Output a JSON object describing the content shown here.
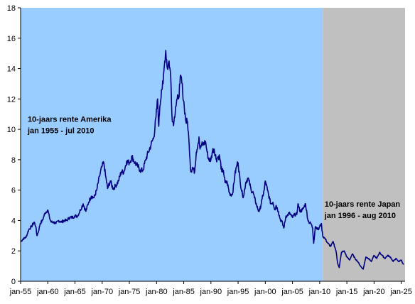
{
  "chart_data": {
    "type": "line",
    "title": "",
    "xlabel": "",
    "ylabel": "",
    "xlim": [
      1955,
      2025.7
    ],
    "ylim": [
      0,
      18
    ],
    "grid": false,
    "legend": "none",
    "y_ticks": [
      0,
      2,
      4,
      6,
      8,
      10,
      12,
      14,
      16,
      18
    ],
    "x_ticks": [
      {
        "x": 1955,
        "label": "jan-55"
      },
      {
        "x": 1960,
        "label": "jan-60"
      },
      {
        "x": 1965,
        "label": "jan-65"
      },
      {
        "x": 1970,
        "label": "jan-70"
      },
      {
        "x": 1975,
        "label": "jan-75"
      },
      {
        "x": 1980,
        "label": "jan-80"
      },
      {
        "x": 1985,
        "label": "jan-85"
      },
      {
        "x": 1990,
        "label": "jan-90"
      },
      {
        "x": 1995,
        "label": "jan-95"
      },
      {
        "x": 2000,
        "label": "jan-00"
      },
      {
        "x": 2005,
        "label": "jan-05"
      },
      {
        "x": 2010,
        "label": "jan-10"
      },
      {
        "x": 2015,
        "label": "jan-15"
      },
      {
        "x": 2020,
        "label": "jan-20"
      },
      {
        "x": 2025,
        "label": "jan-25"
      }
    ],
    "regions": [
      {
        "from": 1955,
        "to": 2010.58,
        "color": "#99ccff"
      },
      {
        "from": 2010.58,
        "to": 2025.7,
        "color": "#c0c0c0"
      }
    ],
    "series": [
      {
        "color": "#000080",
        "x": [
          1955.0,
          1955.5,
          1956.0,
          1956.5,
          1957.0,
          1957.5,
          1957.8,
          1958.0,
          1958.3,
          1958.6,
          1959.0,
          1959.5,
          1960.0,
          1960.3,
          1960.6,
          1961.0,
          1961.5,
          1962.0,
          1962.5,
          1963.0,
          1963.5,
          1964.0,
          1964.5,
          1965.0,
          1965.5,
          1966.0,
          1966.5,
          1967.0,
          1967.5,
          1968.0,
          1968.5,
          1969.0,
          1969.5,
          1970.0,
          1970.3,
          1970.6,
          1971.0,
          1971.5,
          1972.0,
          1972.5,
          1973.0,
          1973.5,
          1974.0,
          1974.5,
          1975.0,
          1975.5,
          1976.0,
          1976.5,
          1977.0,
          1977.5,
          1978.0,
          1978.5,
          1979.0,
          1979.5,
          1979.9,
          1980.2,
          1980.4,
          1980.6,
          1980.9,
          1981.2,
          1981.5,
          1981.7,
          1982.0,
          1982.3,
          1982.6,
          1982.9,
          1983.2,
          1983.5,
          1983.8,
          1984.0,
          1984.3,
          1984.5,
          1984.8,
          1985.1,
          1985.4,
          1985.7,
          1986.0,
          1986.3,
          1986.6,
          1987.0,
          1987.3,
          1987.6,
          1987.8,
          1988.0,
          1988.3,
          1988.6,
          1989.0,
          1989.3,
          1989.6,
          1990.0,
          1990.3,
          1990.6,
          1991.0,
          1991.3,
          1991.6,
          1992.0,
          1992.3,
          1992.6,
          1993.0,
          1993.4,
          1993.8,
          1994.0,
          1994.4,
          1994.8,
          1995.0,
          1995.4,
          1995.8,
          1996.0,
          1996.4,
          1996.8,
          1997.0,
          1997.4,
          1997.8,
          1998.0,
          1998.4,
          1998.8,
          1999.0,
          1999.4,
          1999.8,
          2000.0,
          2000.4,
          2000.8,
          2001.0,
          2001.4,
          2001.8,
          2002.0,
          2002.4,
          2002.8,
          2003.0,
          2003.4,
          2003.8,
          2004.0,
          2004.4,
          2004.8,
          2005.0,
          2005.4,
          2005.8,
          2006.0,
          2006.4,
          2006.8,
          2007.0,
          2007.4,
          2007.8,
          2008.0,
          2008.4,
          2008.7,
          2008.9,
          2009.2,
          2009.5,
          2009.8,
          2010.0,
          2010.3,
          2010.55
        ],
        "values": [
          2.6,
          2.8,
          2.9,
          3.4,
          3.6,
          3.9,
          3.6,
          3.0,
          3.3,
          3.8,
          4.0,
          4.5,
          4.7,
          4.2,
          3.9,
          3.9,
          3.8,
          4.0,
          3.9,
          4.0,
          4.0,
          4.2,
          4.2,
          4.3,
          4.3,
          4.7,
          5.1,
          4.6,
          5.2,
          5.6,
          5.5,
          6.0,
          6.9,
          7.6,
          7.8,
          7.0,
          6.1,
          6.6,
          6.1,
          6.3,
          6.6,
          7.2,
          7.2,
          7.9,
          7.8,
          8.2,
          7.8,
          7.6,
          7.3,
          7.3,
          8.0,
          8.5,
          9.0,
          9.5,
          10.8,
          12.0,
          10.2,
          11.5,
          12.6,
          13.0,
          14.5,
          15.2,
          14.0,
          14.5,
          13.5,
          10.5,
          10.5,
          11.5,
          12.0,
          12.0,
          13.0,
          13.5,
          12.5,
          11.5,
          10.5,
          10.5,
          9.0,
          7.2,
          7.5,
          7.2,
          8.5,
          9.0,
          9.5,
          8.7,
          9.0,
          9.0,
          9.2,
          8.5,
          8.0,
          8.0,
          8.6,
          8.7,
          8.0,
          8.2,
          8.2,
          7.2,
          7.3,
          6.5,
          6.5,
          5.8,
          5.7,
          5.8,
          7.0,
          7.7,
          7.8,
          6.5,
          5.7,
          5.6,
          6.5,
          6.8,
          6.6,
          6.0,
          5.8,
          5.5,
          5.0,
          4.6,
          4.7,
          5.4,
          6.0,
          6.6,
          6.0,
          5.4,
          5.1,
          5.2,
          4.7,
          5.0,
          4.6,
          4.0,
          4.0,
          3.5,
          4.3,
          4.3,
          4.5,
          4.3,
          4.2,
          4.4,
          4.4,
          5.1,
          4.6,
          4.7,
          4.8,
          5.1,
          4.1,
          3.9,
          3.8,
          3.5,
          2.5,
          3.6,
          3.5,
          3.4,
          3.6,
          3.8,
          3.0
        ]
      },
      {
        "color": "#000080",
        "x": [
          2010.55,
          2011.0,
          2011.5,
          2012.0,
          2012.5,
          2013.0,
          2013.3,
          2013.6,
          2014.0,
          2014.5,
          2015.0,
          2015.5,
          2016.0,
          2016.5,
          2017.0,
          2017.5,
          2018.0,
          2018.5,
          2019.0,
          2019.5,
          2020.0,
          2020.5,
          2021.0,
          2021.5,
          2022.0,
          2022.5,
          2023.0,
          2023.5,
          2024.0,
          2024.5,
          2025.0,
          2025.4
        ],
        "values": [
          3.0,
          2.8,
          2.5,
          2.3,
          2.6,
          2.0,
          1.2,
          0.9,
          1.9,
          2.0,
          1.6,
          1.4,
          1.8,
          1.5,
          1.3,
          1.0,
          0.8,
          1.6,
          1.5,
          1.3,
          1.7,
          1.5,
          1.9,
          1.7,
          1.5,
          1.7,
          1.6,
          1.3,
          1.5,
          1.3,
          1.4,
          1.1
        ]
      }
    ],
    "annotations": [
      {
        "lines": [
          "10-jaars rente Amerika",
          "jan 1955 - jul 2010"
        ],
        "anchor_x": 1956.3,
        "anchor_y": 10.5
      },
      {
        "lines": [
          "10-jaars rente Japan",
          "jan 1996 - aug 2010"
        ],
        "anchor_x": 2010.9,
        "anchor_y": 4.9
      }
    ]
  }
}
